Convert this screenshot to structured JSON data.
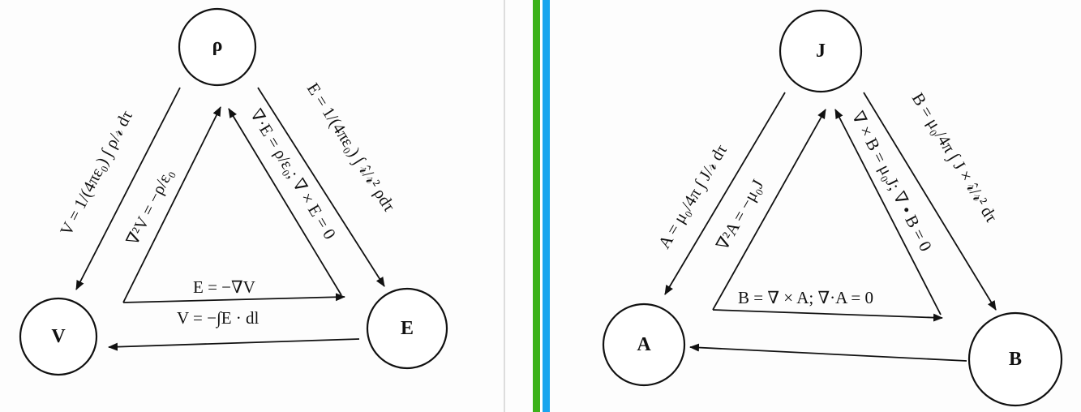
{
  "colors": {
    "ink": "#111111",
    "divider_gray": "#bdbdbd",
    "divider_green": "#3cb21a",
    "divider_blue": "#19a5ee",
    "paper": "#fdfdfd"
  },
  "left": {
    "nodes": {
      "rho": "ρ",
      "V": "V",
      "E": "E"
    },
    "eq_outer_left": "V = 1/(4πε₀) ∫ ρ/𝓇 dτ",
    "eq_outer_right": "E = 1/(4πε₀) ∫ 𝓇̂/𝓇² ρdτ",
    "eq_inner_left": "∇²V = −ρ/ε₀",
    "eq_inner_right": "∇·E = ρ/ε₀; ∇ × E = 0",
    "eq_inner_bottom": "E = −∇V",
    "eq_outer_bottom": "V = −∫E · dl"
  },
  "right": {
    "nodes": {
      "J": "J",
      "A": "A",
      "B": "B"
    },
    "eq_outer_left": "A = μ₀/4π ∫ J/𝓇 dτ",
    "eq_outer_right": "B = μ₀/4π ∫ J × 𝓇̂/𝓇² dτ",
    "eq_inner_left": "∇²A = −μ₀J",
    "eq_inner_right": "∇ × B = μ₀J; ∇ • B = 0",
    "eq_inner_bottom": "B = ∇ × A; ∇·A = 0"
  }
}
